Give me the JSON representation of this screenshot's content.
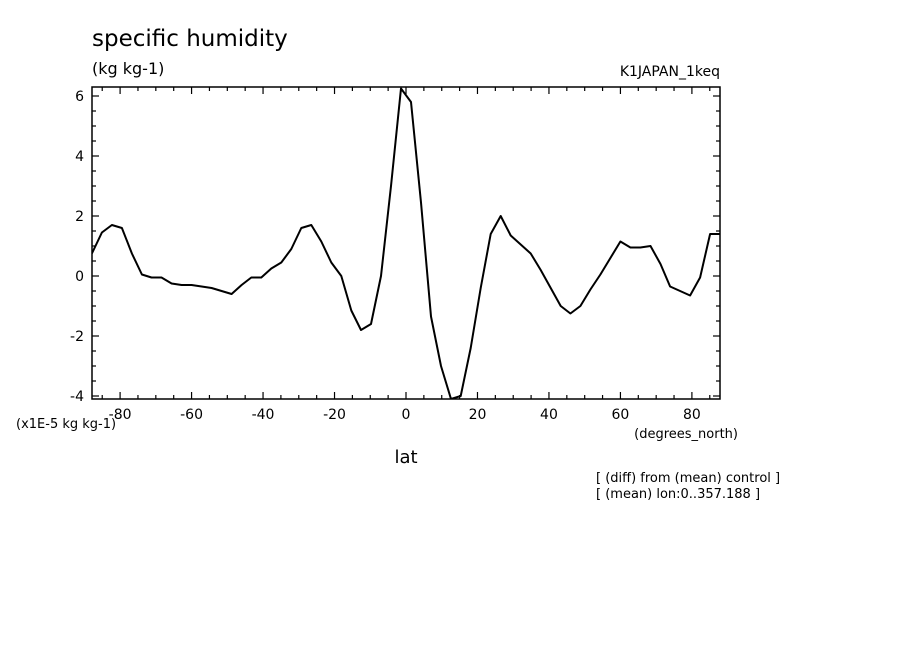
{
  "chart_data": {
    "type": "line",
    "title": "specific humidity",
    "units": "(kg kg-1)",
    "experiment": "K1JAPAN_1keq",
    "ylabel_scale": "(x1E-5 kg kg-1)",
    "xlabel": "lat",
    "xunits": "(degrees_north)",
    "notes": [
      "[ (diff) from (mean) control ]",
      "[ (mean) lon:0..357.188 ]"
    ],
    "xlim": [
      -87.86,
      87.86
    ],
    "ylim": [
      -4.1,
      6.3
    ],
    "xticks": [
      -80,
      -60,
      -40,
      -20,
      0,
      20,
      40,
      60,
      80
    ],
    "xtick_labels": [
      "-80",
      "-60",
      "-40",
      "-20",
      "0",
      "20",
      "40",
      "60",
      "80"
    ],
    "yticks": [
      -4,
      -2,
      0,
      2,
      4,
      6
    ],
    "ytick_labels": [
      "-4",
      "-2",
      "0",
      "2",
      "4",
      "6"
    ],
    "grid": false,
    "series": [
      {
        "x": [
          -87.9,
          -85.1,
          -82.3,
          -79.5,
          -76.7,
          -73.9,
          -71.2,
          -68.4,
          -65.6,
          -62.8,
          -60.0,
          -57.2,
          -54.4,
          -51.6,
          -48.8,
          -46.0,
          -43.3,
          -40.5,
          -37.7,
          -34.9,
          -32.1,
          -29.3,
          -26.5,
          -23.7,
          -20.9,
          -18.1,
          -15.3,
          -12.6,
          -9.8,
          -7.0,
          -4.2,
          -1.4,
          1.4,
          4.2,
          7.0,
          9.8,
          12.6,
          15.3,
          18.1,
          20.9,
          23.7,
          26.5,
          29.3,
          32.1,
          34.9,
          37.7,
          40.5,
          43.3,
          46.0,
          48.8,
          51.6,
          54.4,
          57.2,
          60.0,
          62.8,
          65.6,
          68.4,
          71.2,
          73.9,
          76.7,
          79.5,
          82.3,
          85.1,
          87.9
        ],
        "y": [
          0.75,
          1.45,
          1.7,
          1.6,
          0.75,
          0.05,
          -0.05,
          -0.05,
          -0.25,
          -0.3,
          -0.3,
          -0.35,
          -0.4,
          -0.5,
          -0.6,
          -0.3,
          -0.05,
          -0.05,
          0.25,
          0.45,
          0.9,
          1.6,
          1.7,
          1.15,
          0.45,
          0.0,
          -1.15,
          -1.8,
          -1.6,
          0.0,
          3.0,
          6.25,
          5.8,
          2.45,
          -1.35,
          -3.0,
          -4.1,
          -4.0,
          -2.4,
          -0.4,
          1.4,
          2.0,
          1.35,
          1.05,
          0.75,
          0.2,
          -0.4,
          -1.0,
          -1.25,
          -1.0,
          -0.45,
          0.05,
          0.6,
          1.15,
          0.95,
          0.95,
          1.0,
          0.4,
          -0.35,
          -0.5,
          -0.65,
          -0.05,
          1.4,
          1.4
        ]
      }
    ]
  }
}
